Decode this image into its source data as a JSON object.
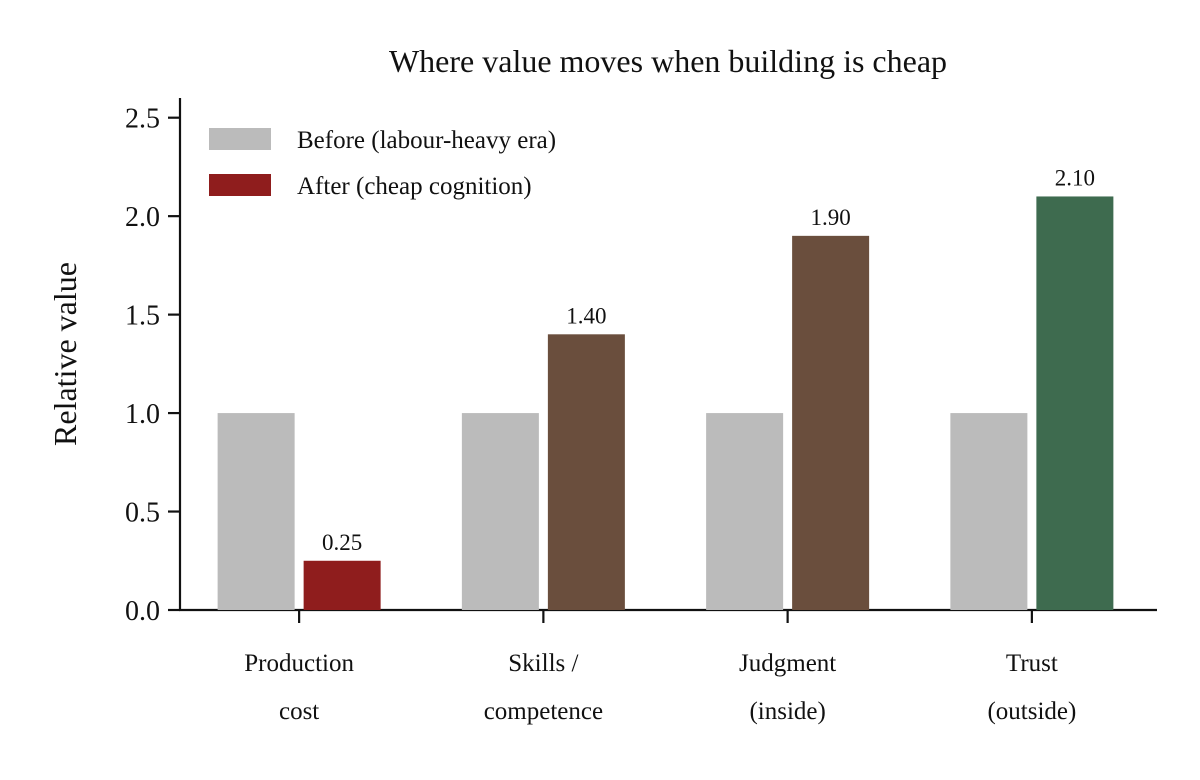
{
  "chart_data": {
    "type": "bar",
    "title": "Where value moves when building is cheap",
    "xlabel": "",
    "ylabel": "Relative value",
    "ylim": [
      0,
      2.6
    ],
    "yticks": [
      "0.0",
      "0.5",
      "1.0",
      "1.5",
      "2.0",
      "2.5"
    ],
    "ytick_values": [
      0,
      0.5,
      1.0,
      1.5,
      2.0,
      2.5
    ],
    "categories": [
      [
        "Production",
        "cost"
      ],
      [
        "Skills /",
        "competence"
      ],
      [
        "Judgment",
        "(inside)"
      ],
      [
        "Trust",
        "(outside)"
      ]
    ],
    "series": [
      {
        "name": "Before (labour-heavy era)",
        "values": [
          1.0,
          1.0,
          1.0,
          1.0
        ],
        "colors": [
          "#bbbbbb",
          "#bbbbbb",
          "#bbbbbb",
          "#bbbbbb"
        ],
        "labels": [
          "",
          "",
          "",
          ""
        ]
      },
      {
        "name": "After (cheap cognition)",
        "values": [
          0.25,
          1.4,
          1.9,
          2.1
        ],
        "colors": [
          "#8f1d1d",
          "#6a4e3d",
          "#6a4e3d",
          "#3e6b4f"
        ],
        "labels": [
          "0.25",
          "1.40",
          "1.90",
          "2.10"
        ]
      }
    ],
    "legend": {
      "placement": "top-left",
      "entries": [
        {
          "label": "Before (labour-heavy era)",
          "color": "#bbbbbb"
        },
        {
          "label": "After (cheap cognition)",
          "color": "#8f1d1d"
        }
      ]
    },
    "grid": false
  }
}
